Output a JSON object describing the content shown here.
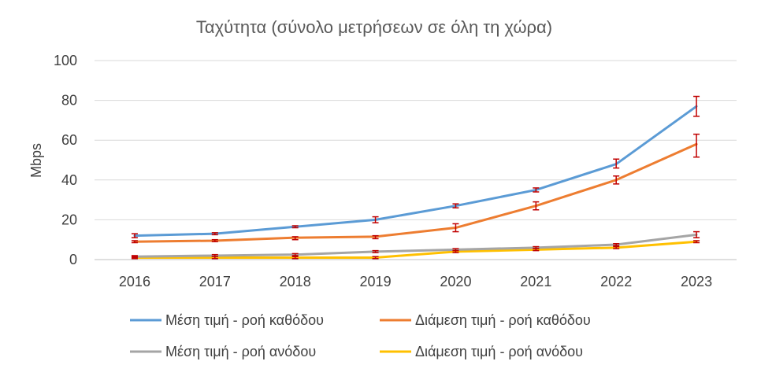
{
  "chart_data": {
    "type": "line",
    "title": "Ταχύτητα (σύνολο μετρήσεων σε όλη τη χώρα)",
    "xlabel": "",
    "ylabel": "Mbps",
    "categories": [
      "2016",
      "2017",
      "2018",
      "2019",
      "2020",
      "2021",
      "2022",
      "2023"
    ],
    "ylim": [
      0,
      100
    ],
    "yticks": [
      0,
      20,
      40,
      60,
      80,
      100
    ],
    "grid": true,
    "legend_position": "bottom",
    "series": [
      {
        "name": "Μέση τιμή - ροή καθόδου",
        "color": "#5B9BD5",
        "values": [
          12,
          13,
          16.5,
          20,
          27,
          35,
          48,
          77
        ],
        "err_low": [
          11,
          12.5,
          16,
          18.5,
          26,
          34,
          46,
          72
        ],
        "err_high": [
          13,
          13.5,
          17,
          21.5,
          28,
          36,
          50.5,
          82
        ]
      },
      {
        "name": "Διάμεση τιμή - ροή καθόδου",
        "color": "#ED7D31",
        "values": [
          9,
          9.5,
          11,
          11.5,
          16,
          27,
          40,
          58
        ],
        "err_low": [
          8.5,
          9,
          10,
          10.5,
          14,
          25,
          38,
          51.5
        ],
        "err_high": [
          9.5,
          10,
          11.5,
          12,
          18,
          29,
          42,
          63
        ]
      },
      {
        "name": "Μέση τιμή - ροή ανόδου",
        "color": "#A5A5A5",
        "values": [
          1.5,
          2,
          2.5,
          4,
          5,
          6,
          7.5,
          12.5
        ],
        "err_low": [
          1,
          1.5,
          2,
          3.5,
          4.5,
          5.5,
          7,
          11
        ],
        "err_high": [
          2,
          2.5,
          3,
          4.5,
          5.5,
          6.5,
          8,
          14
        ]
      },
      {
        "name": "Διάμεση τιμή - ροή ανόδου",
        "color": "#FFC000",
        "values": [
          1,
          1,
          1,
          1,
          4,
          5,
          6,
          9
        ],
        "err_low": [
          0.5,
          0.5,
          0.5,
          0.5,
          3.5,
          4.5,
          5.5,
          8.5
        ],
        "err_high": [
          1.5,
          1.5,
          1.5,
          1.5,
          4.5,
          5.5,
          6.5,
          9.5
        ]
      }
    ],
    "error_bar_color": "#C00000"
  }
}
